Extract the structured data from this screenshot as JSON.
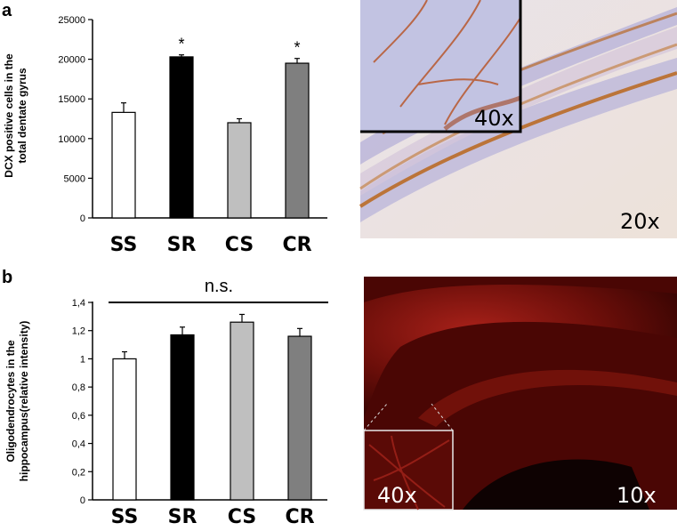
{
  "panels": [
    {
      "label": "a"
    },
    {
      "label": "b"
    }
  ],
  "images": [
    {
      "inset_magnification": "40x",
      "magnification": "20x"
    },
    {
      "inset_magnification": "40x",
      "magnification": "10x"
    }
  ],
  "chart_data": [
    {
      "type": "bar",
      "ylabel_line1": "DCX positive cells in the",
      "ylabel_line2": "total dentate gyrus",
      "categories": [
        "SS",
        "SR",
        "CS",
        "CR"
      ],
      "values": [
        13300,
        20300,
        12000,
        19500
      ],
      "errors": [
        1200,
        250,
        500,
        600
      ],
      "colors": [
        "#ffffff",
        "#000000",
        "#bfbfbf",
        "#7f7f7f"
      ],
      "significance": [
        "",
        "*",
        "",
        "*"
      ],
      "yticks": [
        "0",
        "5000",
        "10000",
        "15000",
        "20000",
        "25000"
      ],
      "ylim": [
        0,
        25000
      ]
    },
    {
      "type": "bar",
      "ylabel_line1": "Oligodendrocytes in the",
      "ylabel_line2": "hippocampus(relative intensity)",
      "categories": [
        "SS",
        "SR",
        "CS",
        "CR"
      ],
      "values": [
        1.0,
        1.17,
        1.26,
        1.16
      ],
      "errors": [
        0.05,
        0.055,
        0.055,
        0.055
      ],
      "colors": [
        "#ffffff",
        "#000000",
        "#bfbfbf",
        "#7f7f7f"
      ],
      "annotation": "n.s.",
      "yticks": [
        "0",
        "0,2",
        "0,4",
        "0,6",
        "0,8",
        "1",
        "1,2",
        "1,4"
      ],
      "ylim": [
        0,
        1.4
      ]
    }
  ]
}
